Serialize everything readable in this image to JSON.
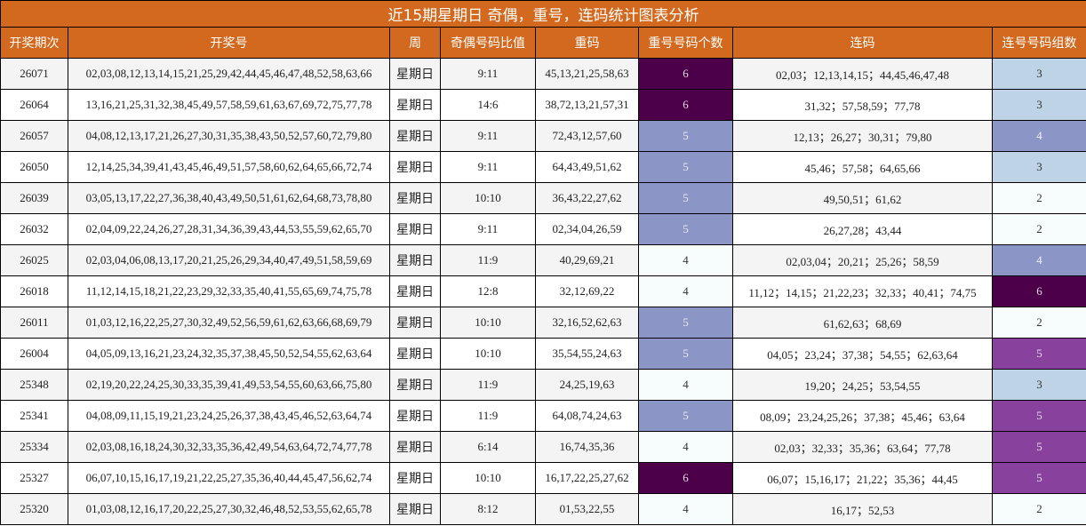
{
  "title": "近15期星期日 奇偶，重号，连码统计图表分析",
  "headers": [
    "开奖期次",
    "开奖号",
    "周",
    "奇偶号码比值",
    "重码",
    "重号号码个数",
    "连码",
    "连号号码组数"
  ],
  "colors": {
    "header_bg": "#d2691e",
    "repeat_6": "#4d0049",
    "repeat_5": "#8c96c6",
    "repeat_4": "#f7fcfd",
    "consec_6": "#4d0049",
    "consec_5": "#88419d",
    "consec_4": "#8c96c6",
    "consec_3": "#bfd3e6",
    "consec_2": "#f7fcfd"
  },
  "rows": [
    {
      "issue": "26071",
      "numbers": "02,03,08,12,13,14,15,21,25,29,42,44,45,46,47,48,52,58,63,66",
      "week": "星期日",
      "odd_even": "9:11",
      "repeat": "45,13,21,25,58,63",
      "repeat_count": "6",
      "consecutive": "02,03；12,13,14,15；44,45,46,47,48",
      "consec_groups": "3"
    },
    {
      "issue": "26064",
      "numbers": "13,16,21,25,31,32,38,45,49,57,58,59,61,63,67,69,72,75,77,78",
      "week": "星期日",
      "odd_even": "14:6",
      "repeat": "38,72,13,21,57,31",
      "repeat_count": "6",
      "consecutive": "31,32；57,58,59；77,78",
      "consec_groups": "3"
    },
    {
      "issue": "26057",
      "numbers": "04,08,12,13,17,21,26,27,30,31,35,38,43,50,52,57,60,72,79,80",
      "week": "星期日",
      "odd_even": "9:11",
      "repeat": "72,43,12,57,60",
      "repeat_count": "5",
      "consecutive": "12,13；26,27；30,31；79,80",
      "consec_groups": "4"
    },
    {
      "issue": "26050",
      "numbers": "12,14,25,34,39,41,43,45,46,49,51,57,58,60,62,64,65,66,72,74",
      "week": "星期日",
      "odd_even": "9:11",
      "repeat": "64,43,49,51,62",
      "repeat_count": "5",
      "consecutive": "45,46；57,58；64,65,66",
      "consec_groups": "3"
    },
    {
      "issue": "26039",
      "numbers": "03,05,13,17,22,27,36,38,40,43,49,50,51,61,62,64,68,73,78,80",
      "week": "星期日",
      "odd_even": "10:10",
      "repeat": "36,43,22,27,62",
      "repeat_count": "5",
      "consecutive": "49,50,51；61,62",
      "consec_groups": "2"
    },
    {
      "issue": "26032",
      "numbers": "02,04,09,22,24,26,27,28,31,34,36,39,43,44,53,55,59,62,65,70",
      "week": "星期日",
      "odd_even": "9:11",
      "repeat": "02,34,04,26,59",
      "repeat_count": "5",
      "consecutive": "26,27,28；43,44",
      "consec_groups": "2"
    },
    {
      "issue": "26025",
      "numbers": "02,03,04,06,08,13,17,20,21,25,26,29,34,40,47,49,51,58,59,69",
      "week": "星期日",
      "odd_even": "11:9",
      "repeat": "40,29,69,21",
      "repeat_count": "4",
      "consecutive": "02,03,04；20,21；25,26；58,59",
      "consec_groups": "4"
    },
    {
      "issue": "26018",
      "numbers": "11,12,14,15,18,21,22,23,29,32,33,35,40,41,55,65,69,74,75,78",
      "week": "星期日",
      "odd_even": "12:8",
      "repeat": "32,12,69,22",
      "repeat_count": "4",
      "consecutive": "11,12；14,15；21,22,23；32,33；40,41；74,75",
      "consec_groups": "6"
    },
    {
      "issue": "26011",
      "numbers": "01,03,12,16,22,25,27,30,32,49,52,56,59,61,62,63,66,68,69,79",
      "week": "星期日",
      "odd_even": "10:10",
      "repeat": "32,16,52,62,63",
      "repeat_count": "5",
      "consecutive": "61,62,63；68,69",
      "consec_groups": "2"
    },
    {
      "issue": "26004",
      "numbers": "04,05,09,13,16,21,23,24,32,35,37,38,45,50,52,54,55,62,63,64",
      "week": "星期日",
      "odd_even": "10:10",
      "repeat": "35,54,55,24,63",
      "repeat_count": "5",
      "consecutive": "04,05；23,24；37,38；54,55；62,63,64",
      "consec_groups": "5"
    },
    {
      "issue": "25348",
      "numbers": "02,19,20,22,24,25,30,33,35,39,41,49,53,54,55,60,63,66,75,80",
      "week": "星期日",
      "odd_even": "11:9",
      "repeat": "24,25,19,63",
      "repeat_count": "4",
      "consecutive": "19,20；24,25；53,54,55",
      "consec_groups": "3"
    },
    {
      "issue": "25341",
      "numbers": "04,08,09,11,15,19,21,23,24,25,26,37,38,43,45,46,52,63,64,74",
      "week": "星期日",
      "odd_even": "11:9",
      "repeat": "64,08,74,24,63",
      "repeat_count": "5",
      "consecutive": "08,09；23,24,25,26；37,38；45,46；63,64",
      "consec_groups": "5"
    },
    {
      "issue": "25334",
      "numbers": "02,03,08,16,18,24,30,32,33,35,36,42,49,54,63,64,72,74,77,78",
      "week": "星期日",
      "odd_even": "6:14",
      "repeat": "16,74,35,36",
      "repeat_count": "4",
      "consecutive": "02,03；32,33；35,36；63,64；77,78",
      "consec_groups": "5"
    },
    {
      "issue": "25327",
      "numbers": "06,07,10,15,16,17,19,21,22,25,27,35,36,40,44,45,47,56,62,74",
      "week": "星期日",
      "odd_even": "10:10",
      "repeat": "16,17,22,25,27,62",
      "repeat_count": "6",
      "consecutive": "06,07；15,16,17；21,22；35,36；44,45",
      "consec_groups": "5"
    },
    {
      "issue": "25320",
      "numbers": "01,03,08,12,16,17,20,22,25,27,30,32,46,48,52,53,55,62,65,78",
      "week": "星期日",
      "odd_even": "8:12",
      "repeat": "01,53,22,55",
      "repeat_count": "4",
      "consecutive": "16,17；52,53",
      "consec_groups": "2"
    }
  ]
}
